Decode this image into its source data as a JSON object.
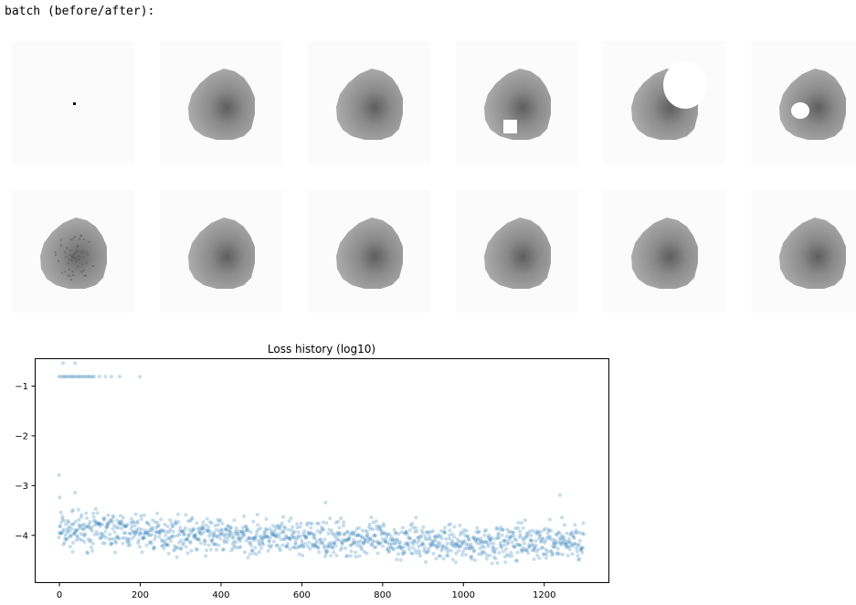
{
  "header": {
    "label": "batch (before/after):"
  },
  "images": {
    "rows": [
      [
        "dot",
        "blob",
        "blob",
        "blob-square-cut",
        "blob-crescent-cut",
        "blob-hole"
      ],
      [
        "blob-noisy",
        "blob",
        "blob",
        "blob",
        "blob",
        "blob-clipped"
      ]
    ]
  },
  "chart_data": {
    "type": "scatter",
    "title": "Loss history (log10)",
    "xlabel": "",
    "ylabel": "",
    "xlim": [
      -60,
      1360
    ],
    "ylim": [
      -4.95,
      -0.45
    ],
    "xticks": [
      0,
      200,
      400,
      600,
      800,
      1000,
      1200
    ],
    "yticks": [
      -1,
      -2,
      -3,
      -4
    ],
    "ytick_labels": [
      "−1",
      "−2",
      "−3",
      "−4"
    ],
    "grid": false,
    "series": [
      {
        "color": "#1f77b4",
        "alpha": 0.25,
        "upper_cluster": {
          "x": [
            0,
            5,
            10,
            14,
            18,
            22,
            27,
            31,
            35,
            39,
            44,
            48,
            52,
            57,
            61,
            65,
            70,
            74,
            78,
            83,
            87,
            100,
            115,
            130,
            150,
            200
          ],
          "y": [
            -0.82,
            -0.82,
            -0.82,
            -0.82,
            -0.82,
            -0.82,
            -0.82,
            -0.82,
            -0.82,
            -0.82,
            -0.82,
            -0.82,
            -0.82,
            -0.82,
            -0.82,
            -0.82,
            -0.82,
            -0.82,
            -0.82,
            -0.82,
            -0.82,
            -0.82,
            -0.82,
            -0.82,
            -0.82,
            -0.82
          ]
        },
        "outliers": {
          "x": [
            10,
            40,
            0,
            2,
            5,
            40,
            35,
            660,
            130,
            1240,
            1245
          ],
          "y": [
            -0.55,
            -0.55,
            -2.8,
            -3.25,
            -3.55,
            -3.15,
            -3.5,
            -3.35,
            -3.7,
            -3.2,
            -3.65
          ]
        },
        "trend": {
          "x": [
            0,
            100,
            200,
            300,
            400,
            500,
            600,
            700,
            800,
            900,
            1000,
            1100,
            1200,
            1300
          ],
          "y": [
            -3.95,
            -3.9,
            -3.95,
            -4.0,
            -4.02,
            -4.05,
            -4.08,
            -4.07,
            -4.1,
            -4.14,
            -4.15,
            -4.17,
            -4.15,
            -4.13
          ]
        },
        "n_points": 1300,
        "spread": 0.35
      }
    ]
  }
}
